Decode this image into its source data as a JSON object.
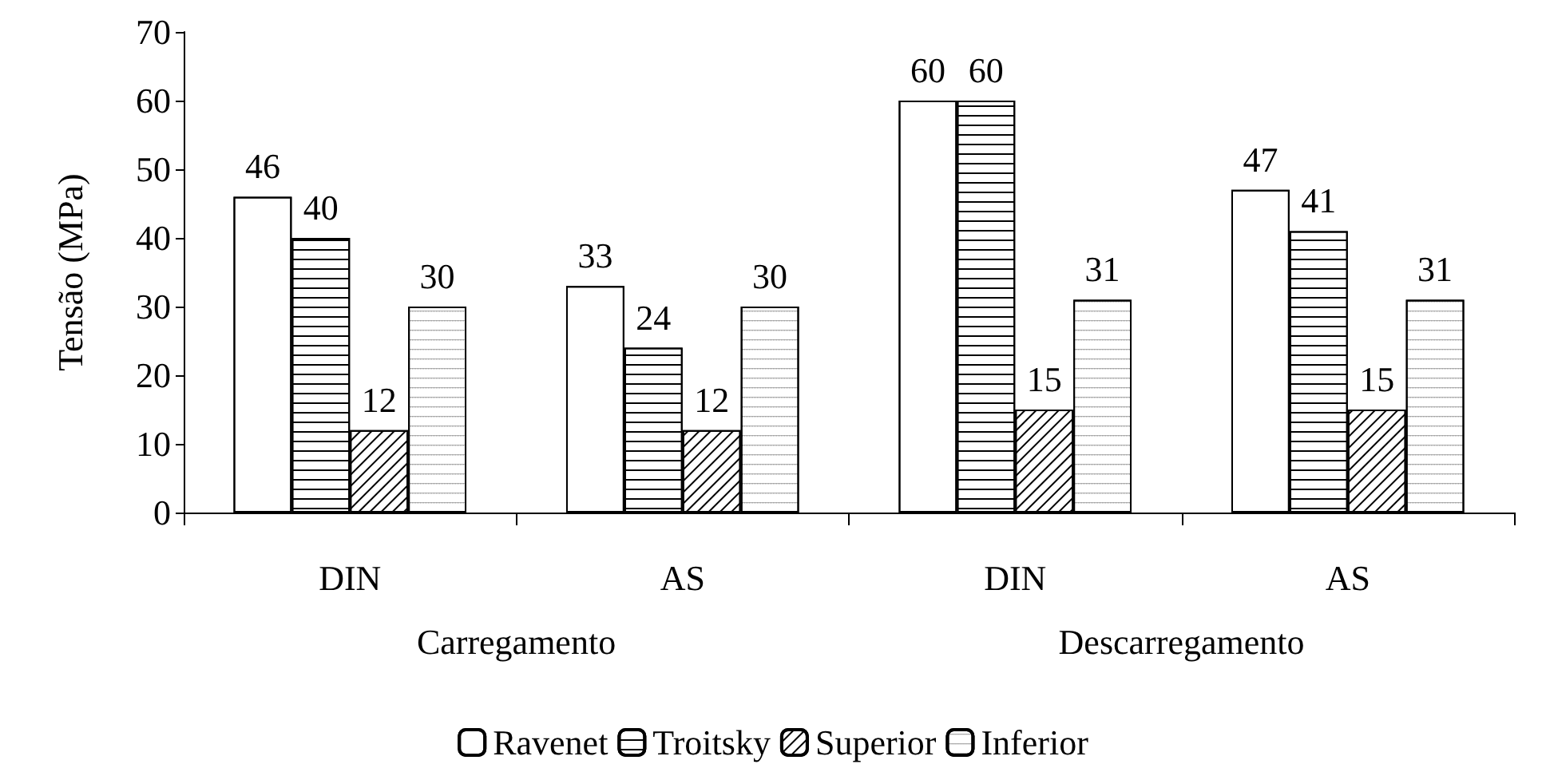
{
  "chart_data": {
    "type": "bar",
    "ylabel": "Tensão (MPa)",
    "categories": [
      "DIN",
      "AS",
      "DIN",
      "AS"
    ],
    "series": [
      {
        "name": "Ravenet",
        "color": "#ffffff",
        "values": [
          46,
          33,
          60,
          47
        ]
      },
      {
        "name": "Troitsky",
        "color": "#ffffff",
        "values": [
          40,
          24,
          60,
          41
        ]
      },
      {
        "name": "Superior",
        "color": "#ffffff",
        "values": [
          12,
          12,
          15,
          15
        ]
      },
      {
        "name": "Inferior",
        "color": "#ffffff",
        "values": [
          30,
          30,
          31,
          31
        ]
      }
    ],
    "annotations": [
      "Carregamento",
      "Descarregamento"
    ],
    "ylim": [
      0,
      70
    ],
    "yticks": [
      0,
      10,
      20,
      30,
      40,
      50,
      60,
      70
    ],
    "grid": false,
    "legend": "bottom",
    "data_labels": true
  }
}
